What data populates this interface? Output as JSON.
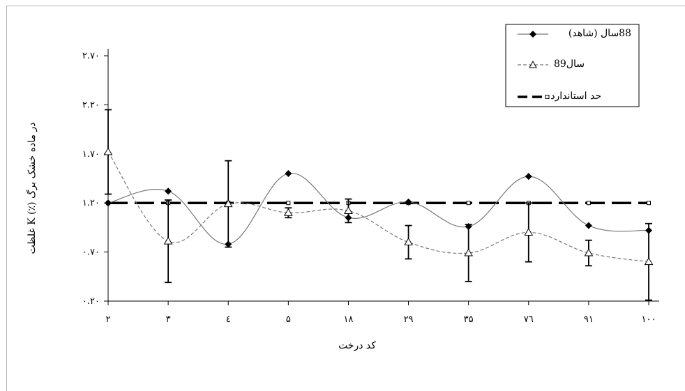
{
  "chart_data": {
    "type": "line",
    "categories": [
      "۲",
      "۳",
      "٤",
      "۵",
      "۱۸",
      "۲۹",
      "۳۵",
      "۷٦",
      "۹۱",
      "۱۰۰"
    ],
    "xlabel": "کد درخت",
    "ylabel": "غلظت K (٪) در ماده خشک برگ",
    "ylim": [
      0.2,
      2.7
    ],
    "yticks": [
      {
        "value": 0.2,
        "label": "۰.۲۰"
      },
      {
        "value": 0.7,
        "label": "۰.۷۰"
      },
      {
        "value": 1.2,
        "label": "۱.۲۰"
      },
      {
        "value": 1.7,
        "label": "۱.۷۰"
      },
      {
        "value": 2.2,
        "label": "۲.۲۰"
      },
      {
        "value": 2.7,
        "label": "۲.۷۰"
      }
    ],
    "legend_position": "top-right",
    "series": [
      {
        "name": "(شاهد) 88سال",
        "style": "solid-diamond",
        "color": "#777777",
        "values": [
          1.2,
          1.32,
          0.78,
          1.5,
          1.05,
          1.21,
          0.96,
          1.47,
          0.97,
          0.92
        ],
        "error": [
          null,
          null,
          null,
          null,
          null,
          null,
          null,
          null,
          null,
          null
        ]
      },
      {
        "name": "89سال",
        "style": "dashed-triangle",
        "color": "#777777",
        "values": [
          1.72,
          0.81,
          1.19,
          1.1,
          1.12,
          0.8,
          0.69,
          0.9,
          0.69,
          0.6
        ],
        "error": [
          0.43,
          0.42,
          0.44,
          0.05,
          0.12,
          0.17,
          0.29,
          0.3,
          0.13,
          0.39
        ]
      },
      {
        "name": "حد استاندارد",
        "style": "bold-dashed-square",
        "color": "#000000",
        "values": [
          1.2,
          1.2,
          1.2,
          1.2,
          1.2,
          1.2,
          1.2,
          1.2,
          1.2,
          1.2
        ]
      }
    ]
  }
}
